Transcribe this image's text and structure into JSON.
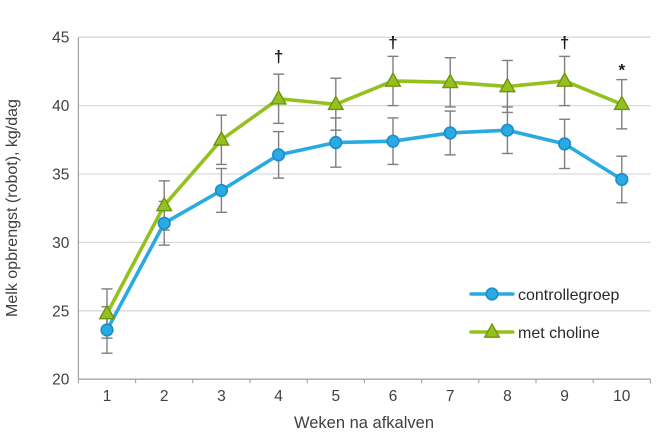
{
  "chart_data": {
    "type": "line",
    "title": "",
    "xlabel": "Weken na afkalven",
    "ylabel": "Melk opbrengst (robot), kg/dag",
    "x": [
      1,
      2,
      3,
      4,
      5,
      6,
      7,
      8,
      9,
      10
    ],
    "ylim": [
      20,
      45
    ],
    "yticks": [
      20,
      25,
      30,
      35,
      40,
      45
    ],
    "grid": true,
    "legend_position": "inside-bottom-right",
    "series": [
      {
        "name": "controllegroep",
        "marker": "circle",
        "color": "#29ABE2",
        "marker_stroke": "#1B8DC9",
        "values": [
          23.6,
          31.4,
          33.8,
          36.4,
          37.3,
          37.4,
          38.0,
          38.2,
          37.2,
          34.6
        ],
        "err": [
          1.7,
          1.6,
          1.6,
          1.7,
          1.8,
          1.7,
          1.6,
          1.7,
          1.8,
          1.7
        ]
      },
      {
        "name": "met choline",
        "marker": "triangle",
        "color": "#95C11F",
        "marker_stroke": "#6E9413",
        "values": [
          24.8,
          32.7,
          37.5,
          40.5,
          40.1,
          41.8,
          41.7,
          41.4,
          41.8,
          40.1
        ],
        "err": [
          1.8,
          1.8,
          1.8,
          1.8,
          1.9,
          1.8,
          1.8,
          1.9,
          1.8,
          1.8
        ]
      }
    ],
    "annotations": [
      {
        "x": 4,
        "y": 43.2,
        "label": "†"
      },
      {
        "x": 6,
        "y": 44.2,
        "label": "†"
      },
      {
        "x": 9,
        "y": 44.2,
        "label": "†"
      },
      {
        "x": 10,
        "y": 42.2,
        "label": "*"
      }
    ],
    "colors": {
      "error_bar": "#7F7F7F",
      "grid": "#D9D9D9",
      "axis": "#A6A6A6",
      "text": "#404040",
      "annotation": "#1A1A1A",
      "background": "#FFFFFF"
    }
  }
}
